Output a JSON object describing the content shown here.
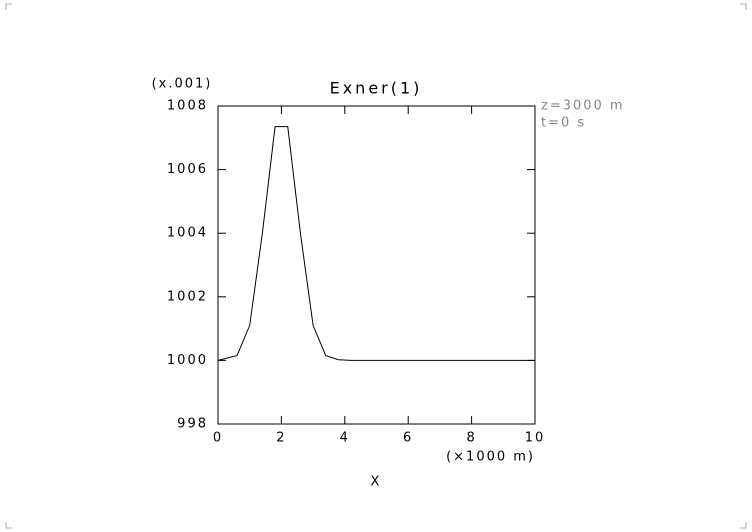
{
  "chart_data": {
    "type": "line",
    "title": "Exner(1)",
    "y_multiplier": "(x.001)",
    "annotations": [
      "z=3000 m",
      "t=0 s"
    ],
    "xlabel": "X",
    "xunit": "(×1000 m)",
    "x": [
      0,
      0.6,
      1.0,
      1.4,
      1.8,
      2.2,
      2.6,
      3.0,
      3.4,
      3.8,
      4.2,
      5,
      6,
      7,
      8,
      9,
      10
    ],
    "series": [
      {
        "color": "#000000",
        "values": [
          1000.0,
          1000.15,
          1001.1,
          1004.0,
          1007.35,
          1007.35,
          1004.0,
          1001.1,
          1000.15,
          1000.02,
          1000.0,
          1000.0,
          1000.0,
          1000.0,
          1000.0,
          1000.0,
          1000.0
        ]
      }
    ],
    "xlim": [
      0,
      10
    ],
    "xticks": [
      0,
      2,
      4,
      6,
      8,
      10
    ],
    "ylim": [
      998,
      1008
    ],
    "yticks": [
      998,
      1000,
      1002,
      1004,
      1006,
      1008
    ]
  }
}
